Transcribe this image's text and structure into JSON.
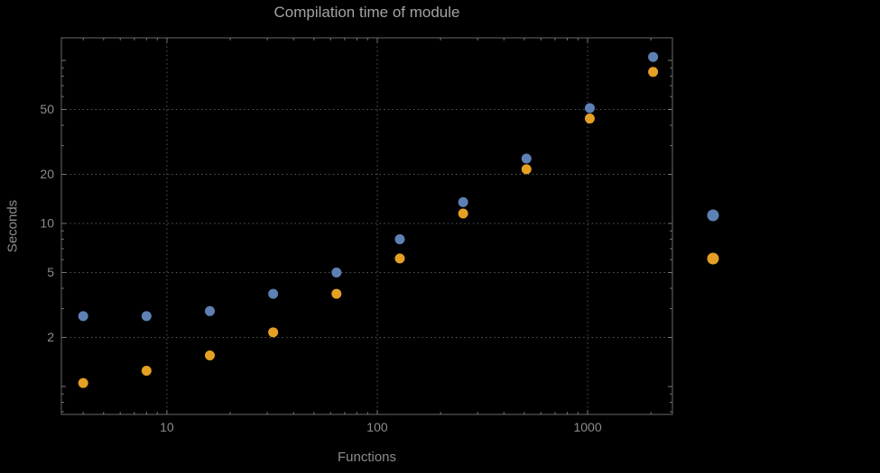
{
  "chart_data": {
    "type": "scatter",
    "title": "Compilation time of module",
    "xlabel": "Functions",
    "ylabel": "Seconds",
    "x_scale": "log",
    "y_scale": "log",
    "grid": "dotted",
    "x_ticks": [
      10,
      100,
      1000
    ],
    "y_ticks": [
      2,
      5,
      10,
      20,
      50
    ],
    "xlim": [
      3.15,
      2530
    ],
    "ylim": [
      0.674,
      137.5
    ],
    "series": [
      {
        "color": "#5e81b5",
        "x": [
          4,
          8,
          16,
          32,
          64,
          128,
          256,
          512,
          1024,
          2048
        ],
        "y": [
          2.7,
          2.7,
          2.9,
          3.7,
          5.0,
          8.0,
          13.5,
          25,
          51,
          105
        ]
      },
      {
        "color": "#e5a024",
        "x": [
          4,
          8,
          16,
          32,
          64,
          128,
          256,
          512,
          1024,
          2048
        ],
        "y": [
          1.05,
          1.25,
          1.55,
          2.15,
          3.7,
          6.1,
          11.5,
          21.5,
          44,
          85
        ]
      }
    ],
    "legend": {
      "position": "right-outside",
      "marker_colors": [
        "#5e81b5",
        "#e5a024"
      ]
    },
    "colors": {
      "background": "#000000",
      "frame": "#686868",
      "grid": "#5a5a5a",
      "tick": "#787878",
      "tick_label": "#8c8c8c",
      "title": "#a3a3a3",
      "axis_label": "#8c8c8c"
    }
  }
}
